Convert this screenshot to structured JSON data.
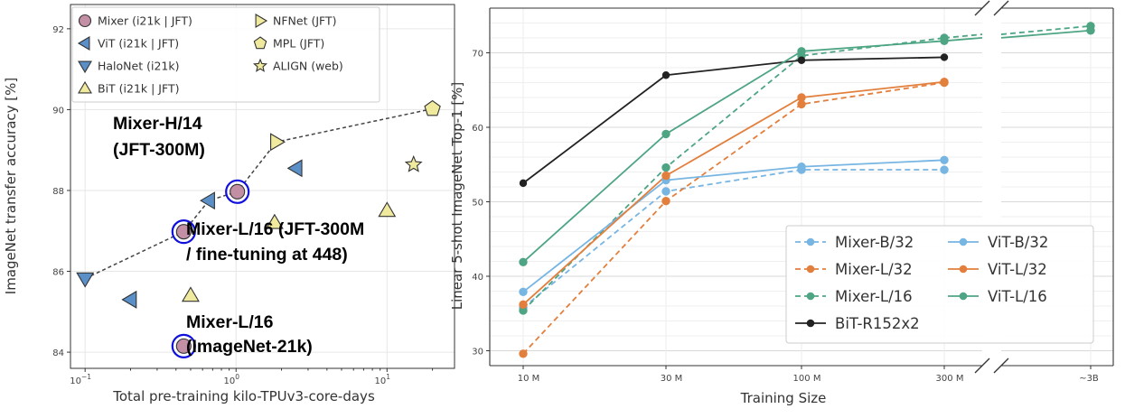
{
  "chart_data": [
    {
      "type": "scatter",
      "xscale": "log",
      "xlabel": "Total pre-training kilo-TPUv3-core-days",
      "ylabel": "ImageNet transfer accuracy [%]",
      "xlim": [
        0.08,
        28
      ],
      "ylim": [
        83.6,
        92.6
      ],
      "xticks": [
        {
          "value": 0.1,
          "base": "10",
          "exp": "−1"
        },
        {
          "value": 1,
          "base": "10",
          "exp": "0"
        },
        {
          "value": 10,
          "base": "10",
          "exp": "1"
        }
      ],
      "yticks": [
        84,
        86,
        88,
        90,
        92
      ],
      "series": [
        {
          "name": "Mixer (i21k | JFT)",
          "marker": "circle",
          "color": "#c38fa4",
          "points": [
            [
              0.45,
              84.15
            ],
            [
              0.45,
              86.98
            ],
            [
              1.02,
              87.97
            ]
          ]
        },
        {
          "name": "ViT (i21k | JFT)",
          "marker": "tri-left",
          "color": "#5b8fc7",
          "points": [
            [
              0.2,
              85.3
            ],
            [
              0.66,
              87.75
            ],
            [
              2.5,
              88.55
            ]
          ]
        },
        {
          "name": "HaloNet (i21k)",
          "marker": "tri-down",
          "color": "#5b8fc7",
          "points": [
            [
              0.1,
              85.82
            ]
          ]
        },
        {
          "name": "BiT (i21k | JFT)",
          "marker": "tri-up",
          "color": "#f0ea9e",
          "points": [
            [
              0.5,
              85.4
            ],
            [
              1.8,
              87.2
            ],
            [
              10,
              87.5
            ]
          ]
        },
        {
          "name": "NFNet (JFT)",
          "marker": "tri-right",
          "color": "#f0ea9e",
          "points": [
            [
              1.85,
              89.2
            ]
          ]
        },
        {
          "name": "MPL (JFT)",
          "marker": "pentagon",
          "color": "#f0ea9e",
          "points": [
            [
              20,
              90.02
            ]
          ]
        },
        {
          "name": "ALIGN (web)",
          "marker": "star",
          "color": "#f0ea9e",
          "points": [
            [
              15,
              88.64
            ]
          ]
        }
      ],
      "frontier": [
        [
          0.1,
          85.82
        ],
        [
          0.45,
          86.98
        ],
        [
          0.66,
          87.75
        ],
        [
          1.02,
          87.97
        ],
        [
          1.85,
          89.2
        ],
        [
          20,
          90.02
        ]
      ],
      "highlighted": [
        [
          0.45,
          84.15
        ],
        [
          0.45,
          86.98
        ],
        [
          1.02,
          87.97
        ]
      ],
      "annotations": [
        {
          "lines": [
            "Mixer-H/14",
            "(JFT-300M)"
          ]
        },
        {
          "lines": [
            "Mixer-L/16 (JFT-300M",
            "/ fine-tuning at 448)"
          ]
        },
        {
          "lines": [
            "Mixer-L/16",
            "(ImageNet-21k)"
          ]
        }
      ]
    },
    {
      "type": "line",
      "xlabel": "Training Size",
      "ylabel": "Linear 5-shot ImageNet Top-1 [%]",
      "categories": [
        "10 M",
        "30 M",
        "100 M",
        "300 M",
        "~3B"
      ],
      "ylim": [
        28,
        76
      ],
      "yticks": [
        30,
        40,
        50,
        60,
        70
      ],
      "series": [
        {
          "name": "Mixer-B/32",
          "color": "#77b5e3",
          "dashed": true,
          "values": [
            35.8,
            51.4,
            54.3,
            54.3,
            null
          ]
        },
        {
          "name": "Mixer-L/32",
          "color": "#e37f3d",
          "dashed": true,
          "values": [
            29.6,
            50.1,
            63.1,
            66.0,
            null
          ]
        },
        {
          "name": "Mixer-L/16",
          "color": "#4ea584",
          "dashed": true,
          "values": [
            35.4,
            54.6,
            69.6,
            72.0,
            73.6
          ]
        },
        {
          "name": "BiT-R152x2",
          "color": "#222222",
          "dashed": false,
          "values": [
            52.5,
            67.0,
            69.0,
            69.4,
            null
          ]
        },
        {
          "name": "ViT-B/32",
          "color": "#77b5e3",
          "dashed": false,
          "values": [
            37.9,
            52.9,
            54.7,
            55.6,
            null
          ]
        },
        {
          "name": "ViT-L/32",
          "color": "#e37f3d",
          "dashed": false,
          "values": [
            36.2,
            53.5,
            64.0,
            66.1,
            null
          ]
        },
        {
          "name": "ViT-L/16",
          "color": "#4ea584",
          "dashed": false,
          "values": [
            41.9,
            59.1,
            70.2,
            71.6,
            73.0
          ]
        }
      ]
    }
  ]
}
